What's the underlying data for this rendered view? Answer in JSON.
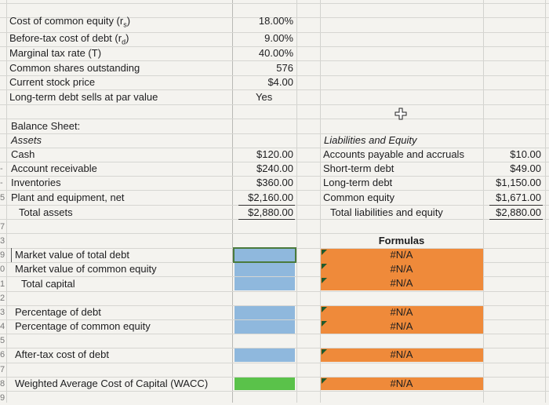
{
  "inputs": [
    {
      "label": "Cost of common equity (r",
      "sub": "s",
      "tail": ")",
      "value": "18.00%"
    },
    {
      "label": "Before-tax cost of debt (r",
      "sub": "d",
      "tail": ")",
      "value": "9.00%"
    },
    {
      "label": "Marginal tax rate (T)",
      "sub": "",
      "tail": "",
      "value": "40.00%"
    },
    {
      "label": "Common shares outstanding",
      "sub": "",
      "tail": "",
      "value": "576"
    },
    {
      "label": "Current stock price",
      "sub": "",
      "tail": "",
      "value": "$4.00"
    },
    {
      "label": "Long-term debt sells at par value",
      "sub": "",
      "tail": "",
      "value": "Yes"
    }
  ],
  "balance_sheet": {
    "title": "Balance Sheet:",
    "assets_header": "Assets",
    "assets": [
      {
        "label": "Cash",
        "value": "$120.00"
      },
      {
        "label": "Account receivable",
        "value": "$240.00"
      },
      {
        "label": "Inventories",
        "value": "$360.00"
      },
      {
        "label": "Plant and equipment, net",
        "value": "$2,160.00"
      },
      {
        "label": "Total assets",
        "value": "$2,880.00"
      }
    ],
    "liabilities_header": "Liabilities and Equity",
    "liabilities": [
      {
        "label": "Accounts payable and accruals",
        "value": "$10.00"
      },
      {
        "label": "Short-term debt",
        "value": "$49.00"
      },
      {
        "label": "Long-term debt",
        "value": "$1,150.00"
      },
      {
        "label": "Common equity",
        "value": "$1,671.00"
      },
      {
        "label": "Total liabilities and equity",
        "value": "$2,880.00"
      }
    ]
  },
  "calc": {
    "formulas_header": "Formulas",
    "rows": [
      {
        "label": "Market value of total debt",
        "formula": "#N/A"
      },
      {
        "label": "Market value of common equity",
        "formula": "#N/A"
      },
      {
        "label": "Total capital",
        "formula": "#N/A"
      },
      {
        "label": "Percentage of debt",
        "formula": "#N/A"
      },
      {
        "label": "Percentage of common equity",
        "formula": "#N/A"
      },
      {
        "label": "After-tax cost of debt",
        "formula": "#N/A"
      },
      {
        "label": "Weighted Average Cost of Capital (WACC)",
        "formula": "#N/A"
      }
    ]
  },
  "row_numbers": [
    "3",
    "9",
    "0",
    "1",
    "2",
    "3",
    "4",
    "5",
    "6",
    "7",
    "8",
    "9"
  ],
  "left_markers": [
    "5",
    "7"
  ],
  "colors": {
    "blue": "#8fb8dd",
    "orange": "#ef8a3a",
    "green": "#5ac24a"
  },
  "cursor_icon": "plus-cursor-icon"
}
